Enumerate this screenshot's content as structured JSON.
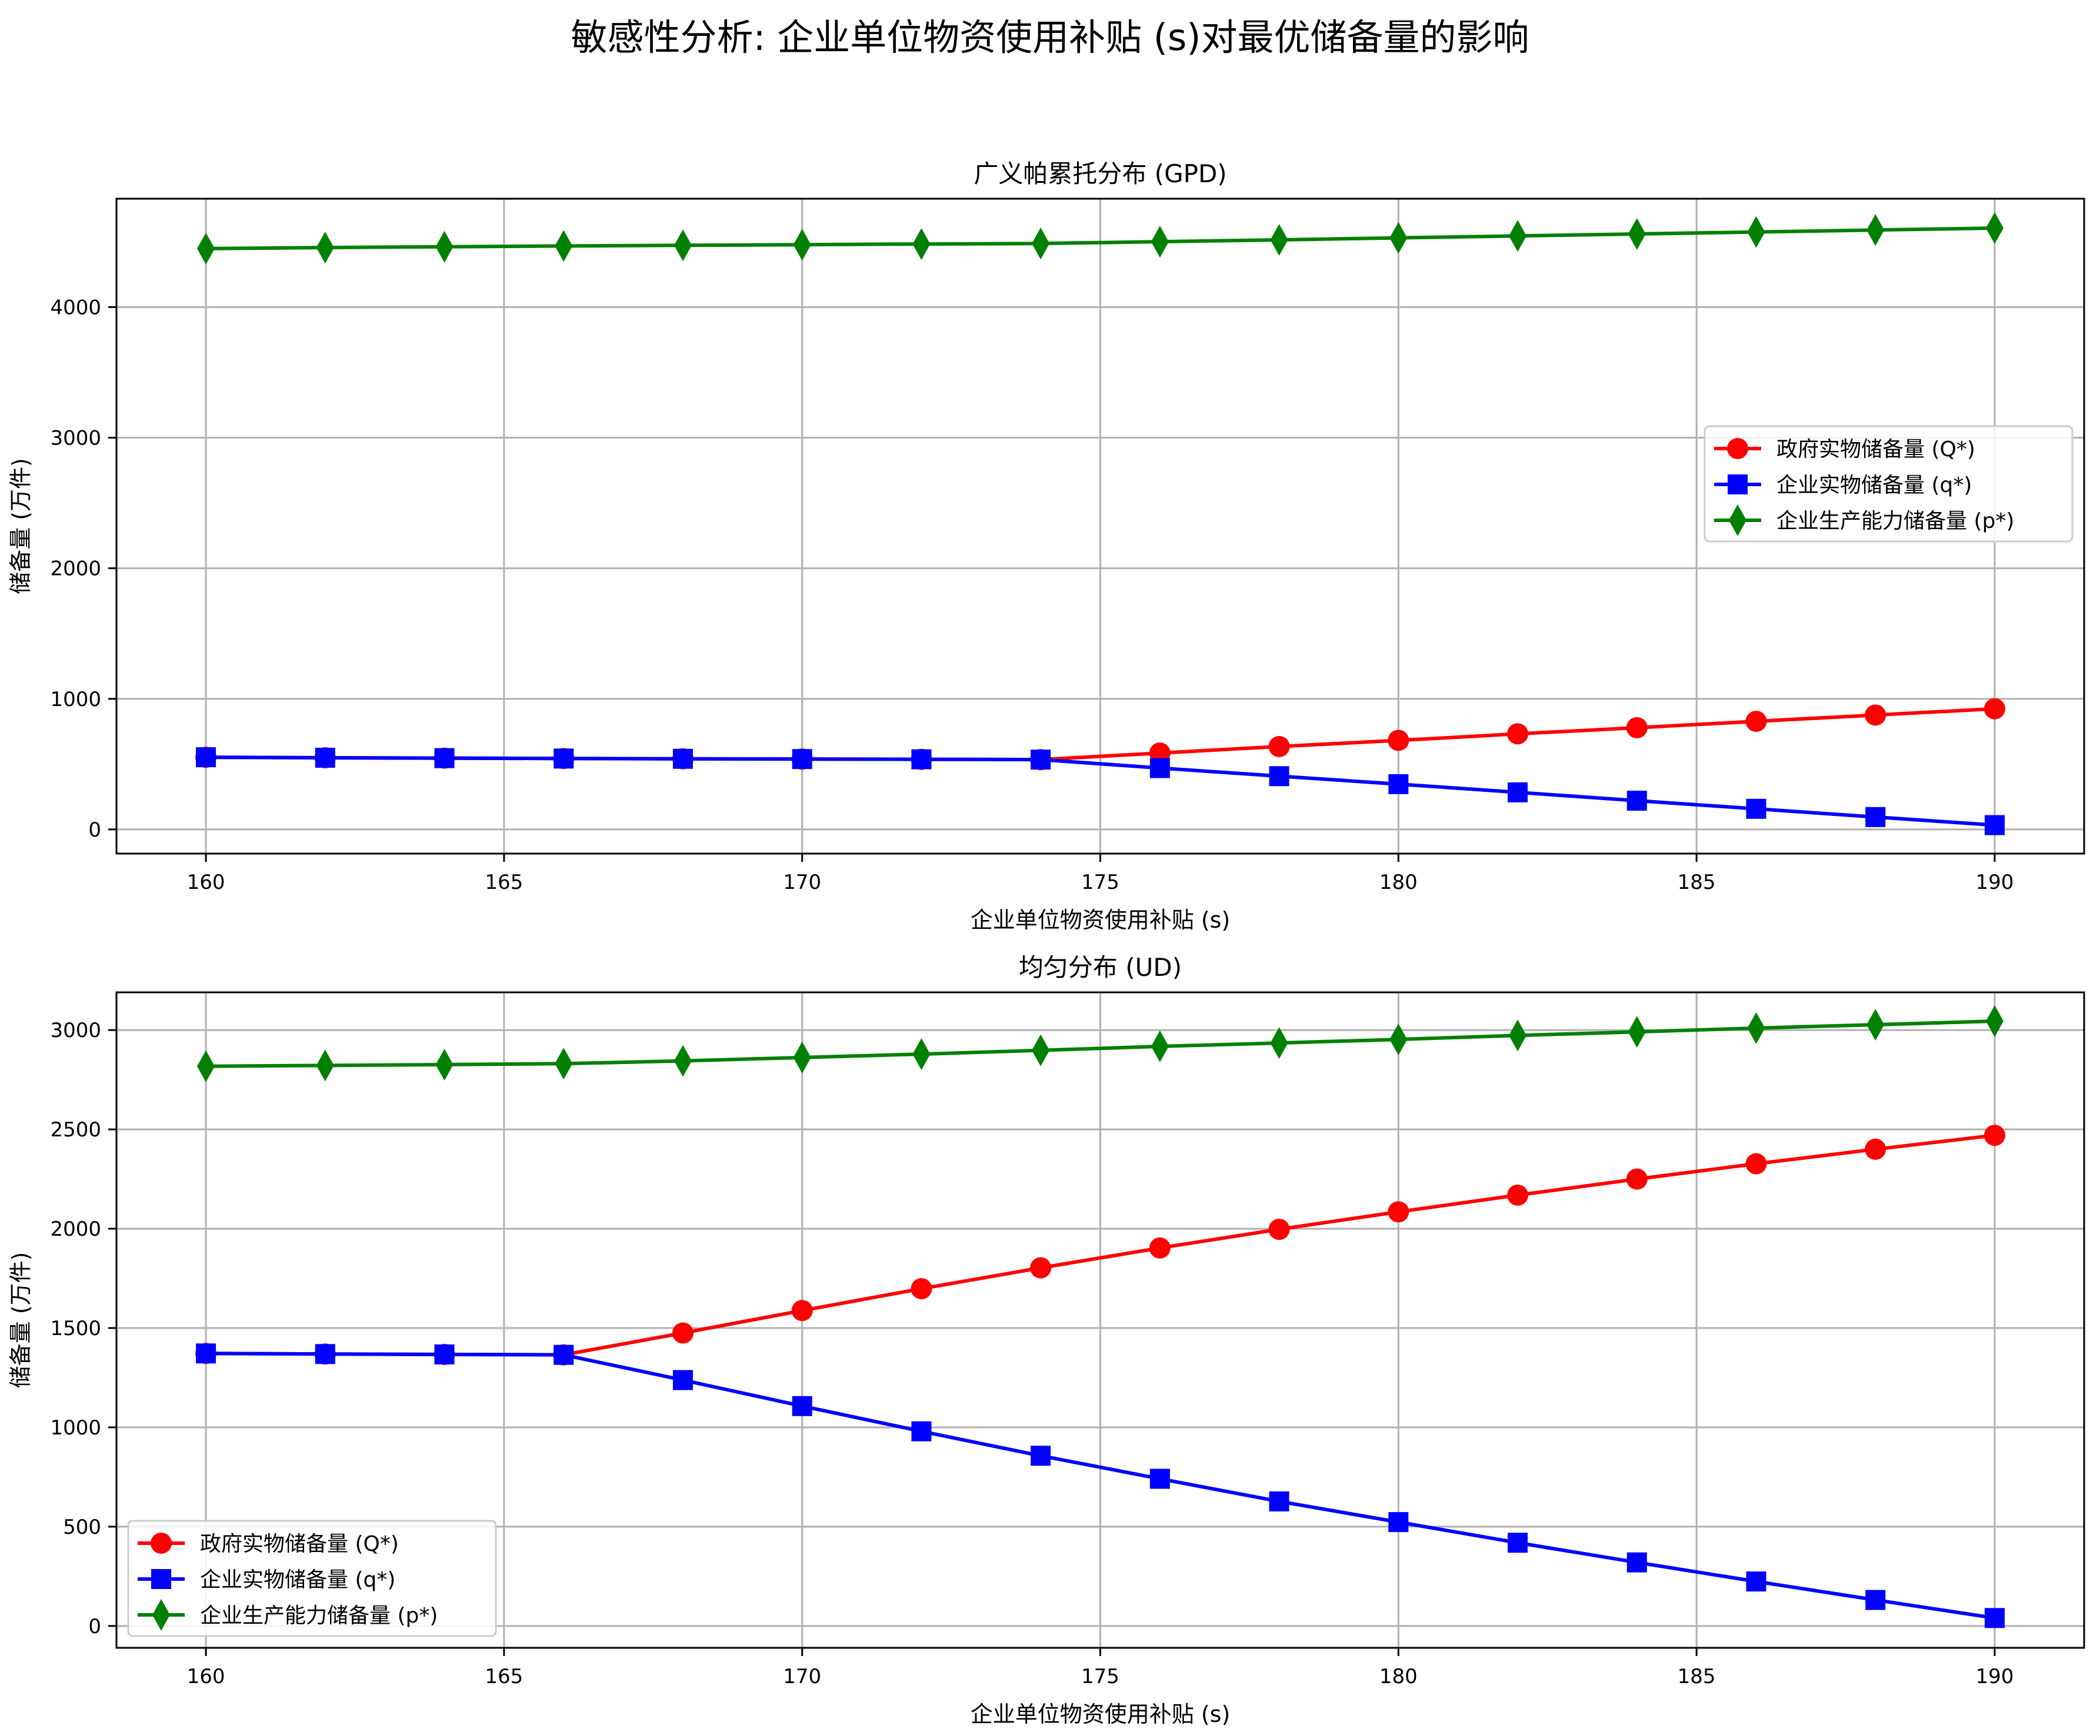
{
  "figure": {
    "title": "敏感性分析: 企业单位物资使用补贴 (s)对最优储备量的影响"
  },
  "chart_data": [
    {
      "type": "line",
      "title": "广义帕累托分布 (GPD)",
      "xlabel": "企业单位物资使用补贴 (s)",
      "ylabel": "储备量 (万件)",
      "xlim": [
        158.5,
        191.5
      ],
      "ylim": [
        -185,
        4830
      ],
      "xticks": [
        160,
        165,
        170,
        175,
        180,
        185,
        190
      ],
      "yticks": [
        0,
        1000,
        2000,
        3000,
        4000
      ],
      "grid": true,
      "legend_position": "center-right",
      "x": [
        160,
        162,
        164,
        166,
        168,
        170,
        172,
        174,
        176,
        178,
        180,
        182,
        184,
        186,
        188,
        190
      ],
      "series": [
        {
          "name": "政府实物储备量 (Q*)",
          "color": "#ff0000",
          "marker": "circle",
          "values": [
            553,
            549,
            546,
            543,
            541,
            539,
            537,
            535,
            585,
            635,
            682,
            732,
            779,
            828,
            876,
            924
          ]
        },
        {
          "name": "企业实物储备量 (q*)",
          "color": "#0000ff",
          "marker": "square",
          "values": [
            553,
            549,
            546,
            543,
            541,
            539,
            537,
            535,
            470,
            408,
            347,
            284,
            220,
            158,
            95,
            33
          ]
        },
        {
          "name": "企业生产能力储备量 (p*)",
          "color": "#008000",
          "marker": "thin-diamond",
          "values": [
            4448,
            4456,
            4462,
            4468,
            4473,
            4478,
            4483,
            4487,
            4501,
            4515,
            4530,
            4545,
            4560,
            4575,
            4590,
            4605
          ]
        }
      ]
    },
    {
      "type": "line",
      "title": "均匀分布 (UD)",
      "xlabel": "企业单位物资使用补贴 (s)",
      "ylabel": "储备量 (万件)",
      "xlim": [
        158.5,
        191.5
      ],
      "ylim": [
        -110,
        3190
      ],
      "xticks": [
        160,
        165,
        170,
        175,
        180,
        185,
        190
      ],
      "yticks": [
        0,
        500,
        1000,
        1500,
        2000,
        2500,
        3000
      ],
      "grid": true,
      "legend_position": "lower-left",
      "x": [
        160,
        162,
        164,
        166,
        168,
        170,
        172,
        174,
        176,
        178,
        180,
        182,
        184,
        186,
        188,
        190
      ],
      "series": [
        {
          "name": "政府实物储备量 (Q*)",
          "color": "#ff0000",
          "marker": "circle",
          "values": [
            1372,
            1369,
            1367,
            1365,
            1475,
            1588,
            1698,
            1803,
            1903,
            1997,
            2085,
            2169,
            2250,
            2327,
            2400,
            2470
          ]
        },
        {
          "name": "企业实物储备量 (q*)",
          "color": "#0000ff",
          "marker": "square",
          "values": [
            1372,
            1369,
            1367,
            1365,
            1238,
            1107,
            980,
            857,
            741,
            627,
            523,
            419,
            320,
            224,
            131,
            40
          ]
        },
        {
          "name": "企业生产能力储备量 (p*)",
          "color": "#008000",
          "marker": "thin-diamond",
          "values": [
            2818,
            2822,
            2826,
            2831,
            2845,
            2862,
            2879,
            2898,
            2918,
            2935,
            2953,
            2973,
            2991,
            3010,
            3027,
            3045
          ]
        }
      ]
    }
  ]
}
